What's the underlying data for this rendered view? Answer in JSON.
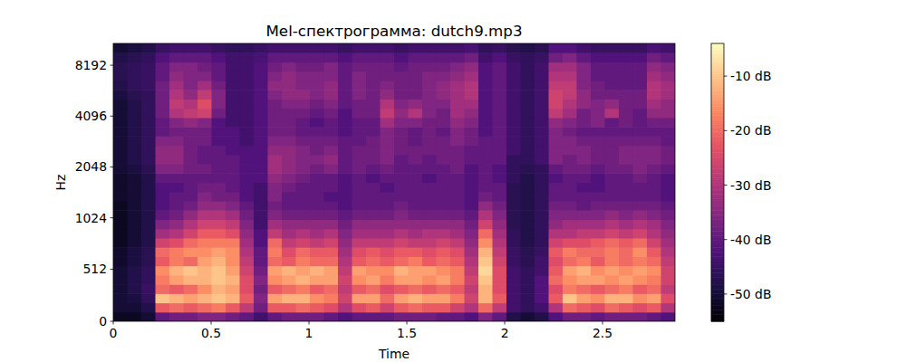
{
  "chart_data": {
    "type": "heatmap",
    "title": "Mel-спектрограмма: dutch9.mp3",
    "x_label": "Time",
    "y_label": "Hz",
    "xlim": [
      0,
      2.87
    ],
    "xticks": [
      0,
      0.5,
      1,
      1.5,
      2,
      2.5
    ],
    "ylim": [
      0,
      11025
    ],
    "yticks": [
      0,
      512,
      1024,
      2048,
      4096,
      8192
    ],
    "colorbar_range": [
      -55,
      -4
    ],
    "colorbar_ticks": [
      {
        "value": -10,
        "label": "-10 dB"
      },
      {
        "value": -20,
        "label": "-20 dB"
      },
      {
        "value": -30,
        "label": "-30 dB"
      },
      {
        "value": -40,
        "label": "-40 dB"
      },
      {
        "value": -50,
        "label": "-50 dB"
      }
    ],
    "cells": [
      [
        -52,
        -52,
        -50,
        -40,
        -38,
        -38,
        -36,
        -36,
        -38,
        -40,
        -44,
        -40,
        -38,
        -38,
        -38,
        -40,
        -42,
        -40,
        -40,
        -40,
        -38,
        -38,
        -38,
        -40,
        -40,
        -42,
        -36,
        -40,
        -48,
        -50,
        -48,
        -42,
        -38,
        -38,
        -40,
        -38,
        -38,
        -38,
        -40,
        -42
      ],
      [
        -50,
        -50,
        -48,
        -22,
        -20,
        -22,
        -20,
        -18,
        -22,
        -28,
        -38,
        -22,
        -22,
        -20,
        -22,
        -24,
        -30,
        -24,
        -22,
        -26,
        -22,
        -20,
        -22,
        -22,
        -26,
        -30,
        -20,
        -28,
        -44,
        -46,
        -44,
        -30,
        -20,
        -22,
        -24,
        -20,
        -22,
        -24,
        -22,
        -30
      ],
      [
        -50,
        -49,
        -46,
        -10,
        -12,
        -14,
        -12,
        -10,
        -12,
        -22,
        -36,
        -14,
        -12,
        -12,
        -16,
        -18,
        -26,
        -14,
        -14,
        -20,
        -14,
        -12,
        -14,
        -14,
        -18,
        -26,
        -12,
        -22,
        -44,
        -46,
        -42,
        -22,
        -10,
        -14,
        -16,
        -12,
        -12,
        -16,
        -14,
        -24
      ],
      [
        -50,
        -48,
        -45,
        -20,
        -22,
        -20,
        -16,
        -12,
        -14,
        -24,
        -38,
        -22,
        -20,
        -18,
        -22,
        -20,
        -28,
        -22,
        -20,
        -24,
        -22,
        -20,
        -22,
        -20,
        -22,
        -28,
        -12,
        -24,
        -44,
        -46,
        -42,
        -24,
        -18,
        -20,
        -22,
        -20,
        -18,
        -22,
        -20,
        -28
      ],
      [
        -50,
        -48,
        -46,
        -18,
        -14,
        -12,
        -12,
        -10,
        -12,
        -24,
        -36,
        -16,
        -14,
        -12,
        -14,
        -14,
        -26,
        -16,
        -14,
        -18,
        -14,
        -14,
        -16,
        -14,
        -18,
        -26,
        -10,
        -24,
        -44,
        -46,
        -42,
        -20,
        -16,
        -14,
        -14,
        -16,
        -14,
        -16,
        -18,
        -26
      ],
      [
        -50,
        -48,
        -46,
        -16,
        -12,
        -10,
        -12,
        -10,
        -14,
        -26,
        -38,
        -14,
        -12,
        -14,
        -12,
        -14,
        -28,
        -14,
        -16,
        -16,
        -12,
        -14,
        -14,
        -16,
        -18,
        -28,
        -8,
        -24,
        -44,
        -46,
        -44,
        -22,
        -14,
        -12,
        -16,
        -14,
        -16,
        -14,
        -16,
        -26
      ],
      [
        -51,
        -49,
        -47,
        -22,
        -18,
        -20,
        -14,
        -12,
        -16,
        -28,
        -40,
        -20,
        -22,
        -18,
        -20,
        -20,
        -30,
        -22,
        -20,
        -22,
        -20,
        -18,
        -22,
        -20,
        -22,
        -30,
        -10,
        -26,
        -45,
        -47,
        -44,
        -24,
        -20,
        -18,
        -22,
        -18,
        -20,
        -18,
        -20,
        -28
      ],
      [
        -51,
        -49,
        -47,
        -20,
        -18,
        -16,
        -16,
        -14,
        -16,
        -30,
        -40,
        -18,
        -24,
        -20,
        -22,
        -22,
        -32,
        -24,
        -22,
        -24,
        -22,
        -22,
        -24,
        -22,
        -24,
        -32,
        -12,
        -28,
        -45,
        -47,
        -45,
        -22,
        -18,
        -20,
        -20,
        -18,
        -20,
        -16,
        -22,
        -30
      ],
      [
        -52,
        -50,
        -48,
        -26,
        -24,
        -20,
        -18,
        -18,
        -18,
        -32,
        -42,
        -20,
        -28,
        -26,
        -28,
        -26,
        -34,
        -28,
        -28,
        -28,
        -26,
        -28,
        -28,
        -26,
        -28,
        -34,
        -16,
        -30,
        -46,
        -48,
        -46,
        -26,
        -24,
        -24,
        -22,
        -20,
        -22,
        -20,
        -26,
        -32
      ],
      [
        -52,
        -50,
        -48,
        -32,
        -30,
        -26,
        -22,
        -22,
        -24,
        -34,
        -42,
        -28,
        -32,
        -30,
        -32,
        -30,
        -36,
        -32,
        -32,
        -32,
        -30,
        -32,
        -30,
        -30,
        -32,
        -36,
        -20,
        -32,
        -46,
        -48,
        -46,
        -30,
        -30,
        -28,
        -28,
        -26,
        -28,
        -26,
        -30,
        -34
      ],
      [
        -52,
        -50,
        -48,
        -36,
        -34,
        -30,
        -26,
        -26,
        -28,
        -36,
        -44,
        -32,
        -34,
        -34,
        -34,
        -34,
        -38,
        -34,
        -34,
        -34,
        -34,
        -34,
        -34,
        -34,
        -34,
        -38,
        -26,
        -34,
        -47,
        -48,
        -46,
        -34,
        -32,
        -32,
        -32,
        -30,
        -32,
        -30,
        -32,
        -36
      ],
      [
        -52,
        -50,
        -48,
        -40,
        -38,
        -34,
        -30,
        -30,
        -32,
        -38,
        -44,
        -36,
        -38,
        -38,
        -38,
        -38,
        -40,
        -38,
        -38,
        -38,
        -36,
        -38,
        -38,
        -38,
        -38,
        -40,
        -30,
        -36,
        -47,
        -48,
        -46,
        -36,
        -36,
        -36,
        -36,
        -34,
        -36,
        -34,
        -36,
        -38
      ],
      [
        -52,
        -50,
        -48,
        -42,
        -40,
        -38,
        -34,
        -34,
        -36,
        -40,
        -44,
        -38,
        -40,
        -40,
        -40,
        -40,
        -42,
        -40,
        -40,
        -40,
        -38,
        -40,
        -40,
        -40,
        -40,
        -42,
        -34,
        -38,
        -47,
        -48,
        -46,
        -38,
        -38,
        -40,
        -38,
        -38,
        -38,
        -38,
        -38,
        -40
      ],
      [
        -51,
        -50,
        -48,
        -42,
        -40,
        -40,
        -36,
        -38,
        -38,
        -42,
        -44,
        -36,
        -40,
        -40,
        -40,
        -42,
        -42,
        -40,
        -40,
        -40,
        -40,
        -40,
        -40,
        -40,
        -40,
        -42,
        -38,
        -40,
        -47,
        -48,
        -46,
        -40,
        -40,
        -40,
        -40,
        -40,
        -40,
        -40,
        -40,
        -42
      ],
      [
        -51,
        -50,
        -48,
        -42,
        -42,
        -40,
        -38,
        -38,
        -40,
        -42,
        -44,
        -36,
        -38,
        -40,
        -40,
        -40,
        -42,
        -40,
        -40,
        -42,
        -40,
        -40,
        -40,
        -40,
        -40,
        -42,
        -40,
        -40,
        -47,
        -48,
        -46,
        -40,
        -40,
        -42,
        -42,
        -40,
        -40,
        -40,
        -40,
        -42
      ],
      [
        -51,
        -50,
        -48,
        -40,
        -40,
        -40,
        -40,
        -40,
        -40,
        -42,
        -42,
        -34,
        -36,
        -38,
        -40,
        -40,
        -42,
        -40,
        -42,
        -40,
        -40,
        -40,
        -42,
        -40,
        -40,
        -42,
        -40,
        -42,
        -46,
        -48,
        -46,
        -42,
        -40,
        -40,
        -42,
        -40,
        -40,
        -38,
        -40,
        -42
      ],
      [
        -50,
        -49,
        -47,
        -36,
        -36,
        -38,
        -38,
        -40,
        -40,
        -42,
        -42,
        -32,
        -34,
        -36,
        -38,
        -36,
        -40,
        -38,
        -40,
        -38,
        -40,
        -40,
        -40,
        -40,
        -38,
        -42,
        -40,
        -42,
        -46,
        -47,
        -46,
        -40,
        -38,
        -38,
        -40,
        -38,
        -38,
        -36,
        -38,
        -40
      ],
      [
        -50,
        -48,
        -46,
        -34,
        -34,
        -38,
        -40,
        -40,
        -40,
        -42,
        -42,
        -32,
        -34,
        -36,
        -36,
        -34,
        -40,
        -38,
        -38,
        -36,
        -40,
        -38,
        -40,
        -38,
        -38,
        -40,
        -40,
        -40,
        -46,
        -46,
        -44,
        -36,
        -38,
        -36,
        -38,
        -38,
        -36,
        -36,
        -36,
        -38
      ],
      [
        -50,
        -48,
        -46,
        -34,
        -34,
        -38,
        -40,
        -40,
        -42,
        -42,
        -42,
        -34,
        -34,
        -36,
        -38,
        -36,
        -40,
        -38,
        -38,
        -36,
        -38,
        -38,
        -38,
        -38,
        -38,
        -40,
        -40,
        -40,
        -44,
        -46,
        -44,
        -36,
        -36,
        -36,
        -38,
        -38,
        -36,
        -36,
        -36,
        -38
      ],
      [
        -50,
        -48,
        -46,
        -36,
        -36,
        -38,
        -38,
        -42,
        -42,
        -44,
        -42,
        -36,
        -36,
        -38,
        -38,
        -38,
        -40,
        -40,
        -38,
        -36,
        -38,
        -40,
        -38,
        -38,
        -36,
        -38,
        -40,
        -40,
        -44,
        -46,
        -44,
        -36,
        -36,
        -38,
        -38,
        -38,
        -38,
        -38,
        -38,
        -40
      ],
      [
        -50,
        -48,
        -46,
        -40,
        -38,
        -38,
        -38,
        -42,
        -42,
        -44,
        -42,
        -38,
        -38,
        -40,
        -40,
        -40,
        -42,
        -40,
        -40,
        -36,
        -38,
        -40,
        -38,
        -40,
        -36,
        -38,
        -42,
        -40,
        -44,
        -46,
        -44,
        -36,
        -38,
        -40,
        -40,
        -40,
        -40,
        -40,
        -40,
        -40
      ],
      [
        -50,
        -48,
        -46,
        -40,
        -36,
        -34,
        -36,
        -42,
        -44,
        -44,
        -42,
        -38,
        -38,
        -40,
        -42,
        -40,
        -42,
        -40,
        -40,
        -32,
        -36,
        -36,
        -38,
        -38,
        -34,
        -36,
        -42,
        -40,
        -44,
        -46,
        -44,
        -34,
        -36,
        -38,
        -36,
        -40,
        -38,
        -40,
        -38,
        -38
      ],
      [
        -50,
        -48,
        -46,
        -38,
        -30,
        -28,
        -26,
        -38,
        -44,
        -44,
        -42,
        -38,
        -38,
        -38,
        -40,
        -38,
        -42,
        -38,
        -38,
        -28,
        -34,
        -30,
        -36,
        -38,
        -32,
        -34,
        -42,
        -40,
        -44,
        -46,
        -44,
        -28,
        -32,
        -38,
        -36,
        -30,
        -38,
        -40,
        -34,
        -34
      ],
      [
        -50,
        -48,
        -46,
        -38,
        -28,
        -30,
        -24,
        -36,
        -44,
        -44,
        -42,
        -38,
        -36,
        -36,
        -38,
        -36,
        -40,
        -38,
        -38,
        -30,
        -36,
        -34,
        -36,
        -36,
        -32,
        -32,
        -42,
        -40,
        -44,
        -46,
        -44,
        -26,
        -30,
        -34,
        -36,
        -34,
        -38,
        -38,
        -32,
        -34
      ],
      [
        -49,
        -47,
        -46,
        -38,
        -30,
        -34,
        -28,
        -36,
        -44,
        -44,
        -42,
        -36,
        -34,
        -34,
        -36,
        -34,
        -40,
        -36,
        -38,
        -34,
        -38,
        -38,
        -36,
        -34,
        -32,
        -30,
        -42,
        -40,
        -44,
        -46,
        -44,
        -26,
        -28,
        -34,
        -38,
        -38,
        -38,
        -38,
        -30,
        -32
      ],
      [
        -48,
        -46,
        -45,
        -38,
        -32,
        -36,
        -32,
        -38,
        -44,
        -44,
        -42,
        -34,
        -34,
        -36,
        -36,
        -34,
        -40,
        -36,
        -38,
        -36,
        -38,
        -38,
        -36,
        -34,
        -32,
        -30,
        -42,
        -40,
        -44,
        -46,
        -44,
        -28,
        -28,
        -36,
        -38,
        -40,
        -40,
        -40,
        -30,
        -32
      ],
      [
        -47,
        -46,
        -45,
        -40,
        -34,
        -36,
        -36,
        -40,
        -44,
        -44,
        -42,
        -36,
        -34,
        -36,
        -36,
        -36,
        -40,
        -36,
        -38,
        -38,
        -38,
        -38,
        -36,
        -36,
        -34,
        -32,
        -42,
        -40,
        -44,
        -46,
        -44,
        -30,
        -30,
        -36,
        -40,
        -40,
        -40,
        -40,
        -32,
        -34
      ],
      [
        -47,
        -46,
        -45,
        -40,
        -36,
        -36,
        -38,
        -40,
        -44,
        -44,
        -42,
        -38,
        -36,
        -38,
        -38,
        -36,
        -40,
        -38,
        -38,
        -38,
        -40,
        -38,
        -38,
        -38,
        -36,
        -34,
        -42,
        -40,
        -44,
        -46,
        -44,
        -32,
        -32,
        -36,
        -40,
        -40,
        -40,
        -40,
        -34,
        -36
      ],
      [
        -48,
        -47,
        -46,
        -42,
        -40,
        -40,
        -40,
        -42,
        -44,
        -44,
        -43,
        -40,
        -40,
        -40,
        -40,
        -40,
        -42,
        -40,
        -40,
        -40,
        -42,
        -40,
        -40,
        -40,
        -40,
        -38,
        -44,
        -42,
        -45,
        -46,
        -45,
        -38,
        -36,
        -40,
        -42,
        -42,
        -42,
        -42,
        -38,
        -40
      ],
      [
        -50,
        -49,
        -48,
        -45,
        -44,
        -44,
        -44,
        -45,
        -46,
        -46,
        -45,
        -44,
        -44,
        -44,
        -44,
        -44,
        -45,
        -44,
        -44,
        -44,
        -45,
        -44,
        -44,
        -44,
        -44,
        -43,
        -46,
        -45,
        -47,
        -48,
        -47,
        -42,
        -42,
        -44,
        -45,
        -45,
        -45,
        -45,
        -43,
        -44
      ]
    ]
  }
}
